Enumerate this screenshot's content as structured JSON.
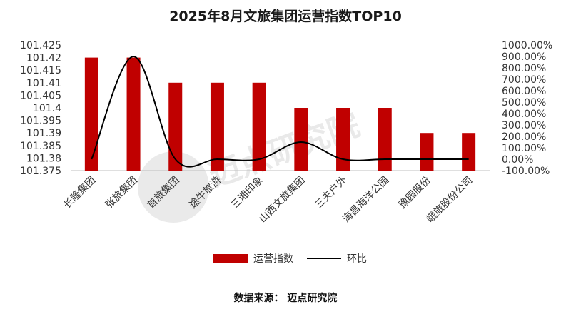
{
  "chart_data": {
    "type": "bar",
    "title": "2025年8月文旅集团运营指数TOP10",
    "categories": [
      "长隆集团",
      "张旅集团",
      "首旅集团",
      "途牛旅游",
      "三湘印象",
      "山西文旅集团",
      "三夫户外",
      "海昌海洋公园",
      "豫园股份",
      "峨旅股份公司"
    ],
    "series": [
      {
        "name": "运营指数",
        "type": "bar",
        "axis": "left",
        "color": "#c00000",
        "values": [
          101.42,
          101.42,
          101.41,
          101.41,
          101.41,
          101.4,
          101.4,
          101.4,
          101.39,
          101.39
        ]
      },
      {
        "name": "环比",
        "type": "line",
        "axis": "right",
        "color": "#000000",
        "values": [
          0.0,
          900.0,
          0.0,
          0.0,
          0.0,
          150.0,
          0.0,
          0.0,
          0.0,
          0.0
        ]
      }
    ],
    "ylim_left": [
      101.375,
      101.425
    ],
    "left_ticks": [
      "101.425",
      "101.42",
      "101.415",
      "101.41",
      "101.405",
      "101.4",
      "101.395",
      "101.39",
      "101.385",
      "101.38",
      "101.375"
    ],
    "ylim_right": [
      -100,
      1000
    ],
    "right_ticks": [
      "1000.00%",
      "900.00%",
      "800.00%",
      "700.00%",
      "600.00%",
      "500.00%",
      "400.00%",
      "300.00%",
      "200.00%",
      "100.00%",
      "0.00%",
      "-100.00%"
    ],
    "legend_position": "bottom",
    "grid": false
  },
  "footer": {
    "source": "数据来源：  迈点研究院"
  },
  "watermark": {
    "text": "迈点研究院"
  }
}
